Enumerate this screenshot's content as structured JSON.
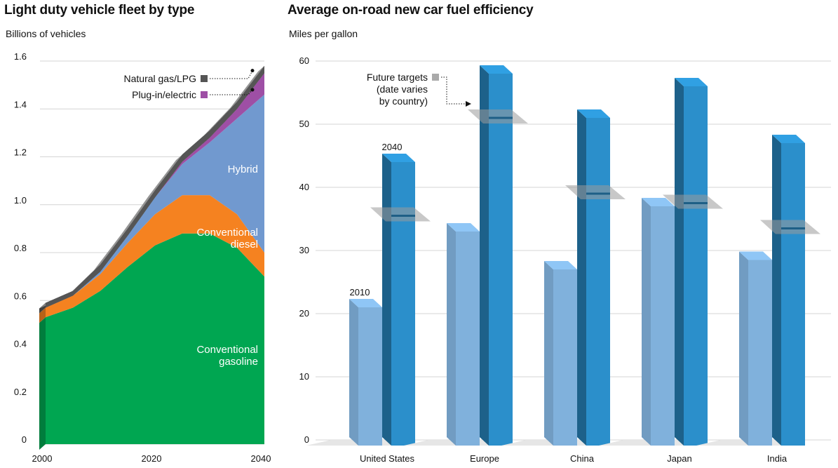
{
  "chart_data": [
    {
      "type": "area",
      "title": "Light duty vehicle fleet by type",
      "ylabel": "Billions of vehicles",
      "xlabel": "",
      "x_ticks": [
        "2000",
        "2020",
        "2040"
      ],
      "y_ticks": [
        "0",
        "0.2",
        "0.4",
        "0.6",
        "0.8",
        "1.0",
        "1.2",
        "1.4",
        "1.6"
      ],
      "xlim": [
        2000,
        2040
      ],
      "ylim": [
        0,
        1.6
      ],
      "grid": true,
      "x": [
        2000,
        2005,
        2010,
        2015,
        2020,
        2025,
        2030,
        2035,
        2040
      ],
      "series": [
        {
          "name": "Conventional gasoline",
          "color": "#00a651",
          "values": [
            0.53,
            0.57,
            0.64,
            0.74,
            0.83,
            0.88,
            0.88,
            0.82,
            0.7
          ]
        },
        {
          "name": "Conventional diesel",
          "color": "#f58220",
          "values": [
            0.04,
            0.05,
            0.07,
            0.1,
            0.13,
            0.16,
            0.16,
            0.14,
            0.1
          ]
        },
        {
          "name": "Hybrid",
          "color": "#7199cf",
          "values": [
            0.0,
            0.0,
            0.01,
            0.03,
            0.07,
            0.13,
            0.22,
            0.4,
            0.66
          ]
        },
        {
          "name": "Plug-in/electric",
          "color": "#9e4fa5",
          "values": [
            0.0,
            0.0,
            0.0,
            0.0,
            0.0,
            0.01,
            0.02,
            0.04,
            0.09
          ]
        },
        {
          "name": "Natural gas/LPG",
          "color": "#555555",
          "values": [
            0.02,
            0.02,
            0.03,
            0.03,
            0.03,
            0.03,
            0.03,
            0.03,
            0.03
          ]
        }
      ],
      "legend": [
        {
          "name": "Natural gas/LPG",
          "color": "#555555"
        },
        {
          "name": "Plug-in/electric",
          "color": "#9e4fa5"
        }
      ],
      "area_labels": [
        "Hybrid",
        "Conventional",
        "diesel",
        "Conventional",
        "gasoline"
      ]
    },
    {
      "type": "bar",
      "title": "Average on-road new car fuel efficiency",
      "ylabel": "Miles per gallon",
      "xlabel": "",
      "categories": [
        "United States",
        "Europe",
        "China",
        "Japan",
        "India"
      ],
      "y_ticks": [
        "0",
        "10",
        "20",
        "30",
        "40",
        "50",
        "60"
      ],
      "ylim": [
        0,
        60
      ],
      "grid": true,
      "series": [
        {
          "name": "2010",
          "color": "#80b1dc",
          "values": [
            21,
            33,
            27,
            37,
            28.5
          ]
        },
        {
          "name": "2040",
          "color": "#2b8fcb",
          "values": [
            44,
            58,
            51,
            56,
            47
          ]
        }
      ],
      "targets": {
        "name": "Future targets",
        "values": [
          35.5,
          51,
          39,
          37.5,
          33.5
        ]
      },
      "annotations": [
        "2010",
        "2040"
      ],
      "target_note": [
        "Future targets",
        "(date varies",
        "by country)"
      ]
    }
  ]
}
